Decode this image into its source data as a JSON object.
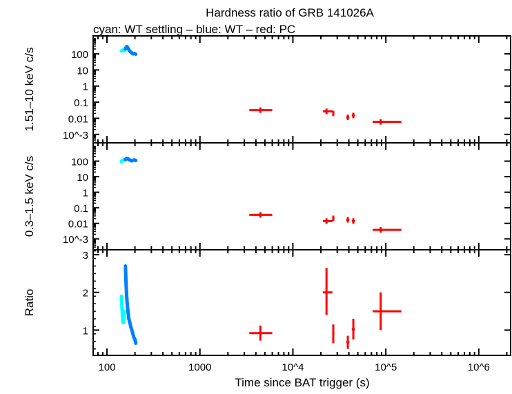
{
  "chart_data": {
    "type": "scatter",
    "title": "Hardness ratio of GRB 141026A",
    "subtitle": "cyan: WT settling – blue: WT – red: PC",
    "xlabel": "Time since BAT trigger (s)",
    "xscale": "log",
    "xlim": [
      71,
      2200000
    ],
    "xticks": [
      {
        "v": 100,
        "label": "100"
      },
      {
        "v": 1000,
        "label": "1000"
      },
      {
        "v": 10000,
        "label": "10^4"
      },
      {
        "v": 100000,
        "label": "10^5"
      },
      {
        "v": 1000000,
        "label": "10^6"
      }
    ],
    "colors": {
      "wt_settling": "#00ffff",
      "wt": "#0080ff",
      "pc": "#ff0000"
    },
    "panels": [
      {
        "ylabel": "1.51–10 keV c/s",
        "yscale": "log",
        "ylim": [
          0.0003,
          1300
        ],
        "yticks": [
          {
            "v": 100,
            "label": "100"
          },
          {
            "v": 10,
            "label": "10"
          },
          {
            "v": 1,
            "label": "1"
          },
          {
            "v": 0.1,
            "label": "0.1"
          },
          {
            "v": 0.01,
            "label": "0.01"
          },
          {
            "v": 0.001,
            "label": "10^-3"
          }
        ],
        "wt_settling": [
          [
            143,
            150
          ],
          [
            146,
            160
          ],
          [
            149,
            170
          ],
          [
            152,
            155
          ],
          [
            155,
            165
          ]
        ],
        "wt": [
          [
            158,
            200
          ],
          [
            161,
            260
          ],
          [
            164,
            280
          ],
          [
            167,
            240
          ],
          [
            171,
            190
          ],
          [
            175,
            150
          ],
          [
            180,
            130
          ],
          [
            186,
            110
          ],
          [
            192,
            100
          ],
          [
            198,
            105
          ],
          [
            204,
            95
          ]
        ],
        "pc": [
          {
            "x": 4470,
            "xlo": 3400,
            "xhi": 6000,
            "y": 0.032
          },
          {
            "x": 23000,
            "xlo": 21000,
            "xhi": 26600,
            "y": 0.027
          },
          {
            "x": 27200,
            "xlo": 26600,
            "xhi": 28000,
            "y": 0.02
          },
          {
            "x": 39000,
            "xlo": 37500,
            "xhi": 40500,
            "y": 0.0115
          },
          {
            "x": 44700,
            "xlo": 43000,
            "xhi": 46500,
            "y": 0.015
          },
          {
            "x": 88000,
            "xlo": 72000,
            "xhi": 147000,
            "y": 0.006
          }
        ]
      },
      {
        "ylabel": "0.3–1.5 keV c/s",
        "yscale": "log",
        "ylim": [
          0.0002,
          1500
        ],
        "yticks": [
          {
            "v": 100,
            "label": "100"
          },
          {
            "v": 10,
            "label": "10"
          },
          {
            "v": 1,
            "label": "1"
          },
          {
            "v": 0.1,
            "label": "0.1"
          },
          {
            "v": 0.01,
            "label": "0.01"
          },
          {
            "v": 0.001,
            "label": "10^-3"
          }
        ],
        "wt_settling": [
          [
            143,
            95
          ],
          [
            146,
            105
          ],
          [
            149,
            110
          ],
          [
            152,
            120
          ],
          [
            155,
            115
          ]
        ],
        "wt": [
          [
            158,
            130
          ],
          [
            161,
            140
          ],
          [
            164,
            150
          ],
          [
            167,
            145
          ],
          [
            171,
            130
          ],
          [
            175,
            120
          ],
          [
            180,
            110
          ],
          [
            186,
            105
          ],
          [
            192,
            115
          ],
          [
            198,
            120
          ],
          [
            204,
            110
          ]
        ],
        "pc": [
          {
            "x": 4470,
            "xlo": 3400,
            "xhi": 6000,
            "y": 0.035
          },
          {
            "x": 23000,
            "xlo": 21000,
            "xhi": 26600,
            "y": 0.014
          },
          {
            "x": 27200,
            "xlo": 26600,
            "xhi": 28000,
            "y": 0.021
          },
          {
            "x": 39000,
            "xlo": 37500,
            "xhi": 40500,
            "y": 0.017
          },
          {
            "x": 44700,
            "xlo": 43000,
            "xhi": 46500,
            "y": 0.014
          },
          {
            "x": 88000,
            "xlo": 72000,
            "xhi": 147000,
            "y": 0.0038
          }
        ]
      },
      {
        "ylabel": "Ratio",
        "yscale": "linear",
        "ylim": [
          0.33,
          3.13
        ],
        "yticks": [
          {
            "v": 1,
            "label": "1"
          },
          {
            "v": 2,
            "label": "2"
          },
          {
            "v": 3,
            "label": "3"
          }
        ],
        "wt_settling": [
          [
            143,
            1.9
          ],
          [
            145,
            1.6
          ],
          [
            147,
            1.4
          ],
          [
            149,
            1.2
          ],
          [
            151,
            1.5
          ],
          [
            153,
            1.3
          ]
        ],
        "wt": [
          [
            158,
            2.7
          ],
          [
            160,
            2.3
          ],
          [
            162,
            2.0
          ],
          [
            165,
            1.7
          ],
          [
            168,
            1.5
          ],
          [
            172,
            1.3
          ],
          [
            176,
            1.2
          ],
          [
            180,
            1.1
          ],
          [
            185,
            1.0
          ],
          [
            190,
            0.9
          ],
          [
            195,
            0.8
          ],
          [
            200,
            0.75
          ],
          [
            204,
            0.65
          ]
        ],
        "pc": [
          {
            "x": 4470,
            "xlo": 3400,
            "xhi": 6000,
            "y": 0.92,
            "ylo": 0.72,
            "yhi": 1.12
          },
          {
            "x": 23000,
            "xlo": 21000,
            "xhi": 26600,
            "y": 2.0,
            "ylo": 1.4,
            "yhi": 2.65
          },
          {
            "x": 27200,
            "xlo": 26600,
            "xhi": 28000,
            "y": 0.9,
            "ylo": 0.65,
            "yhi": 1.15
          },
          {
            "x": 39000,
            "xlo": 37500,
            "xhi": 40500,
            "y": 0.68,
            "ylo": 0.5,
            "yhi": 0.85
          },
          {
            "x": 44700,
            "xlo": 43000,
            "xhi": 46500,
            "y": 1.02,
            "ylo": 0.75,
            "yhi": 1.3
          },
          {
            "x": 88000,
            "xlo": 72000,
            "xhi": 147000,
            "y": 1.5,
            "ylo": 1.0,
            "yhi": 2.0
          }
        ]
      }
    ]
  }
}
